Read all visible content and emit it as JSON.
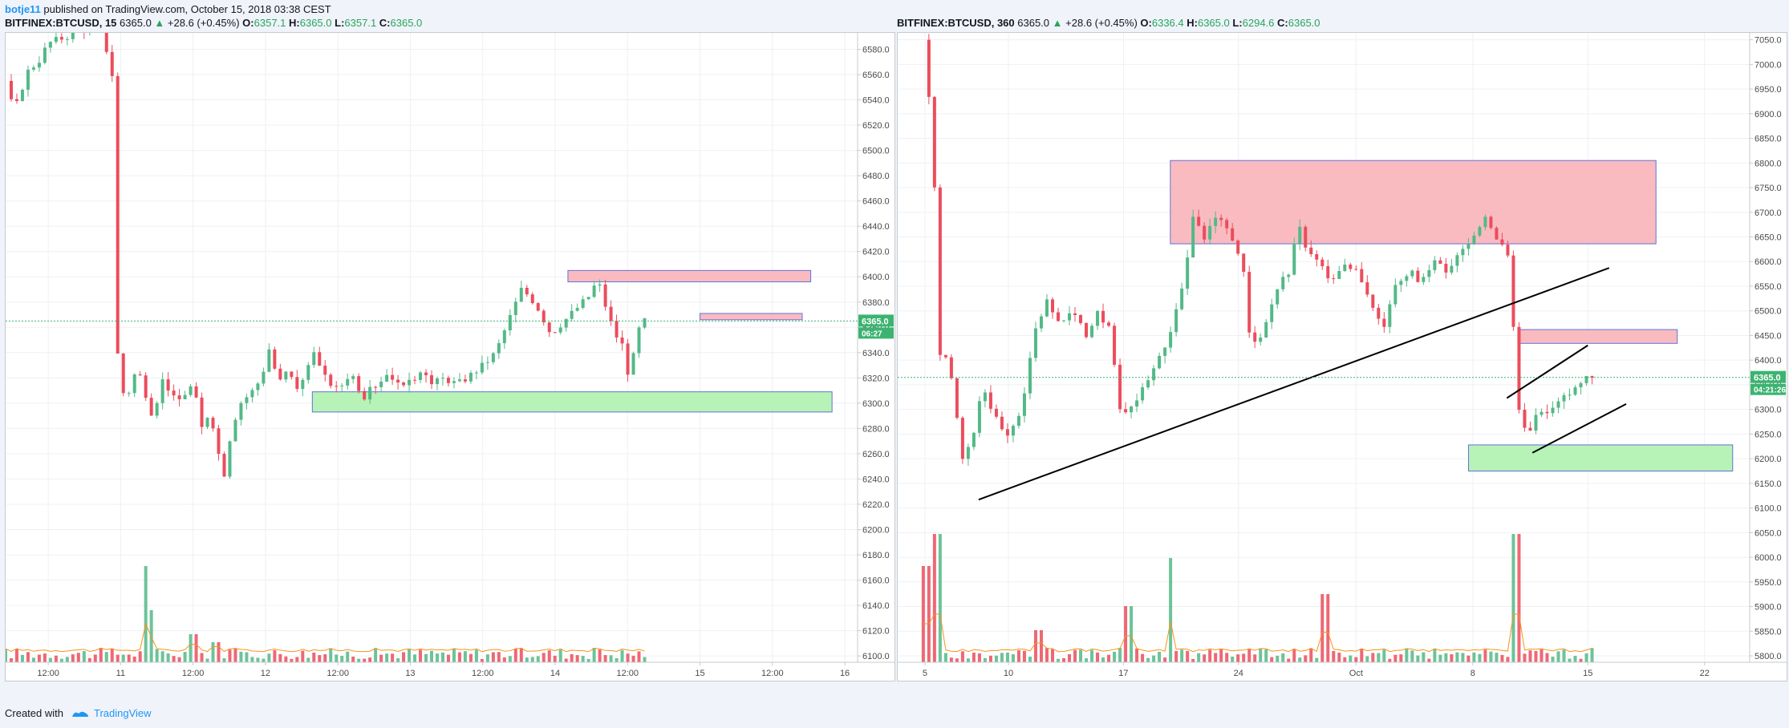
{
  "header": {
    "user": "botje11",
    "text": "published on TradingView.com, October 15, 2018 03:38 CEST"
  },
  "footer": {
    "created_with": "Created with",
    "brand": "TradingView"
  },
  "colors": {
    "up": "#26a65b",
    "down": "#e0505a",
    "up_candle": "#53b987",
    "down_candle": "#eb4d5c",
    "resistance_zone": "#f9b8bd",
    "support_zone": "#b4f3b4",
    "zone_border": "#5b6ad8",
    "ma": "#f7931a",
    "price_tag": "#3cb371"
  },
  "chart_data": [
    {
      "type": "candlestick",
      "title": "BITFINEX:BTCUSD, 15",
      "header": {
        "symbol": "BITFINEX:BTCUSD, 15",
        "last": "6365.0",
        "change": "+28.6 (+0.45%)",
        "open": "6357.1",
        "high": "6365.0",
        "low": "6357.1",
        "close": "6365.0"
      },
      "ylim": [
        6095,
        6593
      ],
      "y_ticks": [
        6580,
        6560,
        6540,
        6520,
        6500,
        6480,
        6460,
        6440,
        6420,
        6400,
        6380,
        6360,
        6340,
        6320,
        6300,
        6280,
        6260,
        6240,
        6220,
        6200,
        6180,
        6160,
        6140,
        6120,
        6100
      ],
      "y_tick_labels": [
        "6580.0",
        "6560.0",
        "6540.0",
        "6520.0",
        "6500.0",
        "6480.0",
        "6460.0",
        "6440.0",
        "6420.0",
        "6400.0",
        "6380.0",
        "6360.0",
        "6340.0",
        "6320.0",
        "6300.0",
        "6280.0",
        "6260.0",
        "6240.0",
        "6220.0",
        "6200.0",
        "6180.0",
        "6160.0",
        "6140.0",
        "6120.0",
        "6100.0"
      ],
      "x_ticks": [
        "12:00",
        "11",
        "12:00",
        "12",
        "12:00",
        "13",
        "12:00",
        "14",
        "12:00",
        "15",
        "12:00",
        "16"
      ],
      "x_tick_fracs": [
        0.05,
        0.135,
        0.22,
        0.305,
        0.39,
        0.475,
        0.56,
        0.645,
        0.73,
        0.815,
        0.9,
        0.985
      ],
      "last_price_label": "6365.0",
      "countdown_label": "06:27",
      "last_price": 6365,
      "price_path": [
        [
          0.0,
          6555
        ],
        [
          0.01,
          6530
        ],
        [
          0.025,
          6562
        ],
        [
          0.04,
          6572
        ],
        [
          0.05,
          6585
        ],
        [
          0.07,
          6590
        ],
        [
          0.09,
          6595
        ],
        [
          0.105,
          6600
        ],
        [
          0.115,
          6590
        ],
        [
          0.125,
          6560
        ],
        [
          0.127,
          6360
        ],
        [
          0.14,
          6300
        ],
        [
          0.155,
          6330
        ],
        [
          0.17,
          6285
        ],
        [
          0.185,
          6320
        ],
        [
          0.2,
          6300
        ],
        [
          0.22,
          6315
        ],
        [
          0.23,
          6280
        ],
        [
          0.24,
          6295
        ],
        [
          0.25,
          6260
        ],
        [
          0.255,
          6238
        ],
        [
          0.265,
          6280
        ],
        [
          0.275,
          6300
        ],
        [
          0.29,
          6310
        ],
        [
          0.3,
          6320
        ],
        [
          0.31,
          6345
        ],
        [
          0.32,
          6315
        ],
        [
          0.33,
          6325
        ],
        [
          0.345,
          6310
        ],
        [
          0.36,
          6340
        ],
        [
          0.375,
          6320
        ],
        [
          0.39,
          6310
        ],
        [
          0.405,
          6325
        ],
        [
          0.42,
          6305
        ],
        [
          0.435,
          6315
        ],
        [
          0.45,
          6325
        ],
        [
          0.465,
          6310
        ],
        [
          0.48,
          6320
        ],
        [
          0.49,
          6330
        ],
        [
          0.5,
          6315
        ],
        [
          0.515,
          6320
        ],
        [
          0.53,
          6315
        ],
        [
          0.545,
          6322
        ],
        [
          0.56,
          6330
        ],
        [
          0.575,
          6340
        ],
        [
          0.59,
          6365
        ],
        [
          0.605,
          6390
        ],
        [
          0.615,
          6385
        ],
        [
          0.625,
          6375
        ],
        [
          0.64,
          6355
        ],
        [
          0.655,
          6365
        ],
        [
          0.67,
          6375
        ],
        [
          0.685,
          6385
        ],
        [
          0.695,
          6398
        ],
        [
          0.705,
          6375
        ],
        [
          0.715,
          6355
        ],
        [
          0.725,
          6345
        ],
        [
          0.733,
          6315
        ],
        [
          0.74,
          6355
        ],
        [
          0.75,
          6365
        ]
      ],
      "zones": [
        {
          "kind": "resistance",
          "price_top": 6405,
          "price_bottom": 6396,
          "x_from": 0.66,
          "x_to": 0.945
        },
        {
          "kind": "resistance",
          "price_top": 6371,
          "price_bottom": 6366,
          "x_from": 0.815,
          "x_to": 0.935
        },
        {
          "kind": "support",
          "price_top": 6309,
          "price_bottom": 6293,
          "x_from": 0.36,
          "x_to": 0.97
        }
      ],
      "volume_spikes": [
        [
          0.168,
          120
        ],
        [
          0.17,
          88
        ],
        [
          0.172,
          65
        ],
        [
          0.22,
          35
        ],
        [
          0.246,
          25
        ],
        [
          0.69,
          18
        ]
      ]
    },
    {
      "type": "candlestick",
      "title": "BITFINEX:BTCUSD, 360",
      "header": {
        "symbol": "BITFINEX:BTCUSD, 360",
        "last": "6365.0",
        "change": "+28.6 (+0.45%)",
        "open": "6336.4",
        "high": "6365.0",
        "low": "6294.6",
        "close": "6365.0"
      },
      "ylim": [
        5787,
        7064
      ],
      "y_ticks": [
        7050,
        7000,
        6950,
        6900,
        6850,
        6800,
        6750,
        6700,
        6650,
        6600,
        6550,
        6500,
        6450,
        6400,
        6350,
        6300,
        6250,
        6200,
        6150,
        6100,
        6050,
        6000,
        5950,
        5900,
        5850,
        5800
      ],
      "y_tick_labels": [
        "7050.0",
        "7000.0",
        "6950.0",
        "6900.0",
        "6850.0",
        "6800.0",
        "6750.0",
        "6700.0",
        "6650.0",
        "6600.0",
        "6550.0",
        "6500.0",
        "6450.0",
        "6400.0",
        "6350.0",
        "6300.0",
        "6250.0",
        "6200.0",
        "6150.0",
        "6100.0",
        "6050.0",
        "6000.0",
        "5950.0",
        "5900.0",
        "5850.0",
        "5800.0"
      ],
      "x_ticks": [
        "5",
        "10",
        "17",
        "24",
        "Oct",
        "8",
        "15",
        "22"
      ],
      "x_tick_fracs": [
        0.032,
        0.13,
        0.265,
        0.4,
        0.538,
        0.675,
        0.81,
        0.947
      ],
      "last_price_label": "6365.0",
      "countdown_label": "04:21:26",
      "last_price": 6365,
      "price_path": [
        [
          0.03,
          7050
        ],
        [
          0.035,
          6980
        ],
        [
          0.045,
          6700
        ],
        [
          0.05,
          6400
        ],
        [
          0.06,
          6410
        ],
        [
          0.075,
          6200
        ],
        [
          0.09,
          6250
        ],
        [
          0.1,
          6350
        ],
        [
          0.115,
          6280
        ],
        [
          0.13,
          6250
        ],
        [
          0.145,
          6300
        ],
        [
          0.16,
          6450
        ],
        [
          0.175,
          6520
        ],
        [
          0.19,
          6480
        ],
        [
          0.205,
          6500
        ],
        [
          0.22,
          6450
        ],
        [
          0.235,
          6500
        ],
        [
          0.25,
          6460
        ],
        [
          0.262,
          6280
        ],
        [
          0.275,
          6300
        ],
        [
          0.29,
          6350
        ],
        [
          0.305,
          6400
        ],
        [
          0.32,
          6450
        ],
        [
          0.335,
          6560
        ],
        [
          0.34,
          6600
        ],
        [
          0.345,
          6700
        ],
        [
          0.36,
          6650
        ],
        [
          0.375,
          6700
        ],
        [
          0.39,
          6650
        ],
        [
          0.405,
          6600
        ],
        [
          0.415,
          6420
        ],
        [
          0.43,
          6460
        ],
        [
          0.445,
          6550
        ],
        [
          0.46,
          6580
        ],
        [
          0.47,
          6680
        ],
        [
          0.48,
          6620
        ],
        [
          0.495,
          6600
        ],
        [
          0.51,
          6560
        ],
        [
          0.525,
          6600
        ],
        [
          0.54,
          6580
        ],
        [
          0.555,
          6520
        ],
        [
          0.57,
          6460
        ],
        [
          0.585,
          6560
        ],
        [
          0.6,
          6580
        ],
        [
          0.615,
          6560
        ],
        [
          0.63,
          6600
        ],
        [
          0.645,
          6580
        ],
        [
          0.66,
          6620
        ],
        [
          0.675,
          6650
        ],
        [
          0.69,
          6690
        ],
        [
          0.705,
          6640
        ],
        [
          0.715,
          6620
        ],
        [
          0.72,
          6550
        ],
        [
          0.728,
          6300
        ],
        [
          0.74,
          6250
        ],
        [
          0.75,
          6300
        ],
        [
          0.765,
          6290
        ],
        [
          0.78,
          6320
        ],
        [
          0.795,
          6340
        ],
        [
          0.805,
          6360
        ],
        [
          0.815,
          6365
        ]
      ],
      "zones": [
        {
          "kind": "resistance",
          "price_top": 6805,
          "price_bottom": 6636,
          "x_from": 0.32,
          "x_to": 0.89
        },
        {
          "kind": "resistance",
          "price_top": 6462,
          "price_bottom": 6434,
          "x_from": 0.73,
          "x_to": 0.915
        },
        {
          "kind": "support",
          "price_top": 6228,
          "price_bottom": 6175,
          "x_from": 0.67,
          "x_to": 0.98
        }
      ],
      "trendlines": [
        {
          "from": [
            0.095,
            6117
          ],
          "to": [
            0.835,
            6587
          ]
        },
        {
          "from": [
            0.715,
            6323
          ],
          "to": [
            0.81,
            6430
          ]
        },
        {
          "from": [
            0.745,
            6212
          ],
          "to": [
            0.855,
            6311
          ]
        }
      ],
      "volume_spikes": [
        [
          0.035,
          120
        ],
        [
          0.045,
          160
        ],
        [
          0.165,
          40
        ],
        [
          0.27,
          70
        ],
        [
          0.32,
          130
        ],
        [
          0.5,
          85
        ],
        [
          0.725,
          160
        ]
      ]
    }
  ]
}
